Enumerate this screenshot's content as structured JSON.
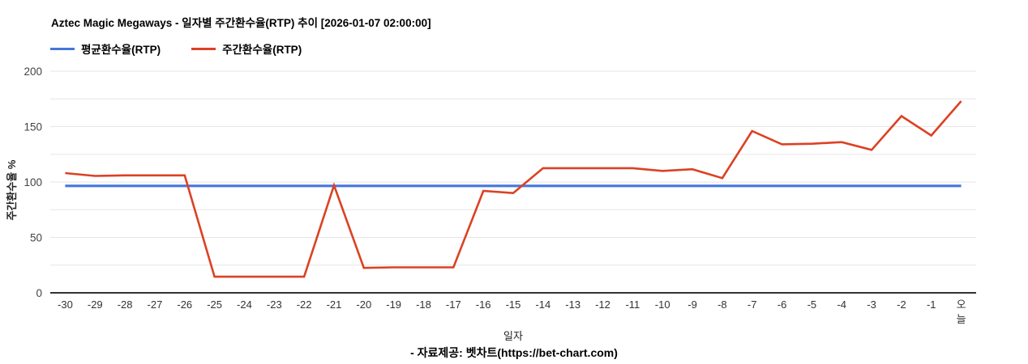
{
  "title": "Aztec Magic Megaways - 일자별 주간환수율(RTP) 추이 [2026-01-07 02:00:00]",
  "legend": [
    {
      "key": "average_rtp",
      "label": "평균환수율(RTP)",
      "color": "#4477dd"
    },
    {
      "key": "weekly_rtp",
      "label": "주간환수율(RTP)",
      "color": "#dc4123"
    }
  ],
  "footer": "- 자료제공: 벳차트(https://bet-chart.com)",
  "colors": {
    "grid": "#e6e6e6",
    "axis": "#333333",
    "tick_text": "#444444"
  },
  "chart_data": {
    "type": "line",
    "title": "Aztec Magic Megaways - 일자별 주간환수율(RTP) 추이 [2026-01-07 02:00:00]",
    "xlabel": "일자",
    "ylabel": "주간환수율 %",
    "ylim": [
      0,
      200
    ],
    "yticks": [
      0,
      50,
      100,
      150,
      200
    ],
    "grid_step": 25,
    "grid": true,
    "legend_position": "top-left",
    "categories": [
      "-30",
      "-29",
      "-28",
      "-27",
      "-26",
      "-25",
      "-24",
      "-23",
      "-22",
      "-21",
      "-20",
      "-19",
      "-18",
      "-17",
      "-16",
      "-15",
      "-14",
      "-13",
      "-12",
      "-11",
      "-10",
      "-9",
      "-8",
      "-7",
      "-6",
      "-5",
      "-4",
      "-3",
      "-2",
      "-1",
      "오늘"
    ],
    "series": [
      {
        "key": "average_rtp",
        "name": "평균환수율(RTP)",
        "color": "#4477dd",
        "line_width": 3.2,
        "values": [
          96.5,
          96.5,
          96.5,
          96.5,
          96.5,
          96.5,
          96.5,
          96.5,
          96.5,
          96.5,
          96.5,
          96.5,
          96.5,
          96.5,
          96.5,
          96.5,
          96.5,
          96.5,
          96.5,
          96.5,
          96.5,
          96.5,
          96.5,
          96.5,
          96.5,
          96.5,
          96.5,
          96.5,
          96.5,
          96.5,
          96.5
        ]
      },
      {
        "key": "weekly_rtp",
        "name": "주간환수율(RTP)",
        "color": "#dc4123",
        "line_width": 2.6,
        "values": [
          108,
          105.5,
          106,
          106,
          106,
          14.5,
          14.5,
          14.5,
          14.5,
          97,
          22.5,
          23,
          23,
          23,
          92,
          90,
          112.5,
          112.5,
          112.5,
          112.5,
          110,
          111.5,
          103.5,
          146,
          134,
          134.5,
          136,
          129,
          159.5,
          142,
          173
        ]
      }
    ]
  }
}
